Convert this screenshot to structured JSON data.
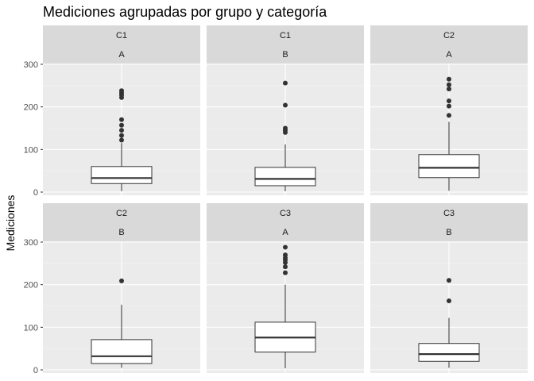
{
  "chart_data": {
    "type": "boxplot",
    "title": "Mediciones agrupadas por grupo y categoría",
    "ylabel": "Mediciones",
    "xlabel": "",
    "ylim": [
      -8,
      300
    ],
    "yticks": [
      0,
      100,
      200,
      300
    ],
    "grid": true,
    "facet_layout": [
      2,
      3
    ],
    "panels": [
      {
        "strip": [
          "C1",
          "A"
        ],
        "q1": 20,
        "median": 33,
        "q3": 60,
        "whisker_low": 2,
        "whisker_high": 115,
        "outliers": [
          122,
          133,
          145,
          157,
          170,
          222,
          228,
          233,
          238
        ]
      },
      {
        "strip": [
          "C1",
          "B"
        ],
        "q1": 15,
        "median": 31,
        "q3": 58,
        "whisker_low": 2,
        "whisker_high": 112,
        "outliers": [
          140,
          145,
          150,
          204,
          256
        ]
      },
      {
        "strip": [
          "C2",
          "A"
        ],
        "q1": 34,
        "median": 57,
        "q3": 88,
        "whisker_low": 3,
        "whisker_high": 165,
        "outliers": [
          180,
          202,
          214,
          242,
          252,
          265
        ]
      },
      {
        "strip": [
          "C2",
          "B"
        ],
        "q1": 15,
        "median": 32,
        "q3": 71,
        "whisker_low": 5,
        "whisker_high": 153,
        "outliers": [
          209
        ]
      },
      {
        "strip": [
          "C3",
          "A"
        ],
        "q1": 42,
        "median": 76,
        "q3": 112,
        "whisker_low": 4,
        "whisker_high": 200,
        "outliers": [
          228,
          242,
          252,
          258,
          263,
          270,
          288
        ]
      },
      {
        "strip": [
          "C3",
          "B"
        ],
        "q1": 20,
        "median": 37,
        "q3": 62,
        "whisker_low": 5,
        "whisker_high": 122,
        "outliers": [
          162,
          210
        ]
      }
    ]
  }
}
